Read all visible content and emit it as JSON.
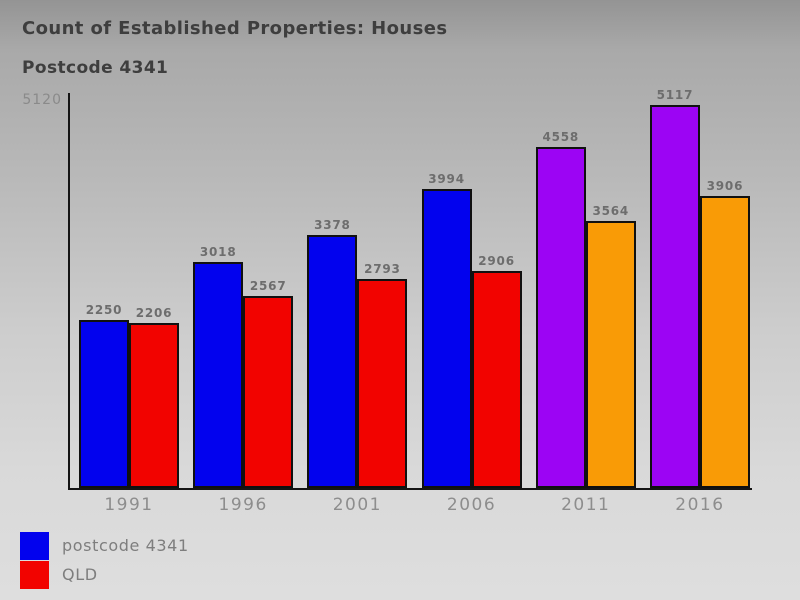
{
  "chart_data": {
    "type": "bar",
    "title": "Count of Established Properties: Houses",
    "subtitle": "Postcode 4341",
    "categories": [
      "1991",
      "1996",
      "2001",
      "2006",
      "2011",
      "2016"
    ],
    "series": [
      {
        "name": "postcode 4341",
        "values": [
          2250,
          3018,
          3378,
          3994,
          4558,
          5117
        ],
        "bar_colors": [
          "#0202ee",
          "#0202ee",
          "#0202ee",
          "#0202ee",
          "#9c04f4",
          "#9c04f4"
        ]
      },
      {
        "name": "QLD",
        "values": [
          2206,
          2567,
          2793,
          2906,
          3564,
          3906
        ],
        "bar_colors": [
          "#f20300",
          "#f20300",
          "#f20300",
          "#f20300",
          "#f99b06",
          "#f99b06"
        ]
      }
    ],
    "ylim": [
      0,
      5120
    ],
    "y_axis_top_label": "5120",
    "grid": false,
    "value_labels": true,
    "legend": {
      "position": "bottom-left",
      "entries": [
        {
          "label": "postcode 4341",
          "color": "#0202ee"
        },
        {
          "label": "QLD",
          "color": "#f20300"
        }
      ]
    }
  }
}
